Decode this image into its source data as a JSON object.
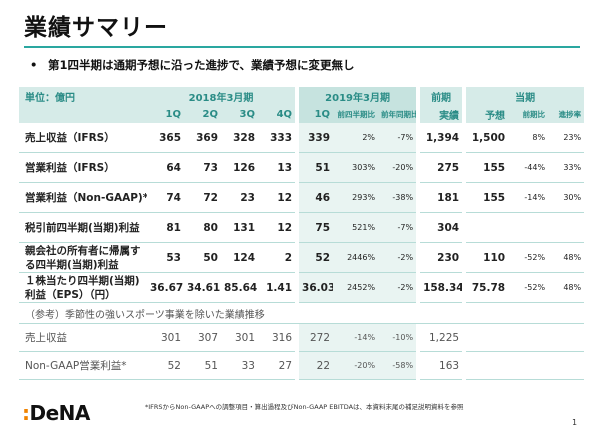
{
  "title": "業績サマリー",
  "bullet": {
    "marker": "•",
    "text": "第1四半期は通期予想に沿った進捗で、業績予想に変更無し"
  },
  "table": {
    "unit_label": "単位：億円",
    "fy2018_label": "2018年3月期",
    "fy2019_label": "2019年3月期",
    "prev_fy_label": "前期",
    "curr_fy_label": "当期",
    "quarters": [
      "1Q",
      "2Q",
      "3Q",
      "4Q"
    ],
    "q2019": "1Q",
    "sub_yoy_prev_q": "前四半期比",
    "sub_yoy": "前年同期比",
    "actual_label": "実績",
    "forecast_label": "予想",
    "sub_vs_prev": "前期比",
    "sub_progress": "進捗率",
    "rows": [
      {
        "label": "売上収益（IFRS）",
        "q": [
          "365",
          "369",
          "328",
          "333"
        ],
        "q1": "339",
        "qoq": "2%",
        "yoy": "-7%",
        "prev": "1,394",
        "fc": "1,500",
        "vs": "8%",
        "prog": "23%"
      },
      {
        "label": "営業利益（IFRS）",
        "q": [
          "64",
          "73",
          "126",
          "13"
        ],
        "q1": "51",
        "qoq": "303%",
        "yoy": "-20%",
        "prev": "275",
        "fc": "155",
        "vs": "-44%",
        "prog": "33%"
      },
      {
        "label": "営業利益（Non-GAAP)*",
        "q": [
          "74",
          "72",
          "23",
          "12"
        ],
        "q1": "46",
        "qoq": "293%",
        "yoy": "-38%",
        "prev": "181",
        "fc": "155",
        "vs": "-14%",
        "prog": "30%"
      },
      {
        "label": "税引前四半期(当期)利益",
        "q": [
          "81",
          "80",
          "131",
          "12"
        ],
        "q1": "75",
        "qoq": "521%",
        "yoy": "-7%",
        "prev": "304",
        "fc": "",
        "vs": "",
        "prog": ""
      },
      {
        "label": "親会社の所有者に帰属する四半期(当期)利益",
        "q": [
          "53",
          "50",
          "124",
          "2"
        ],
        "q1": "52",
        "qoq": "2446%",
        "yoy": "-2%",
        "prev": "230",
        "fc": "110",
        "vs": "-52%",
        "prog": "48%"
      },
      {
        "label": "１株当たり四半期(当期)利益（EPS）（円）",
        "q": [
          "36.67",
          "34.61",
          "85.64",
          "1.41"
        ],
        "q1": "36.03",
        "qoq": "2452%",
        "yoy": "-2%",
        "prev": "158.34",
        "fc": "75.78",
        "vs": "-52%",
        "prog": "48%"
      }
    ],
    "section_label": "（参考）季節性の強いスポーツ事業を除いた業績推移",
    "sub_rows": [
      {
        "label": "売上収益",
        "q": [
          "301",
          "307",
          "301",
          "316"
        ],
        "q1": "272",
        "qoq": "-14%",
        "yoy": "-10%",
        "prev": "1,225"
      },
      {
        "label": "Non-GAAP営業利益*",
        "q": [
          "52",
          "51",
          "33",
          "27"
        ],
        "q1": "22",
        "qoq": "-20%",
        "yoy": "-58%",
        "prev": "163"
      }
    ]
  },
  "footnote": "*IFRSからNon-GAAPへの調整項目・算出過程及びNon-GAAP EBITDAは、本資料末尾の補足説明資料を参照",
  "logo": {
    "colon": ":",
    "text": "DeNA"
  },
  "page_number": "1",
  "colors": {
    "accent": "#2aa7a0",
    "header_bg": "#d6ebe8",
    "highlight": "#e9f4f2",
    "logo_colon": "#f08300"
  }
}
